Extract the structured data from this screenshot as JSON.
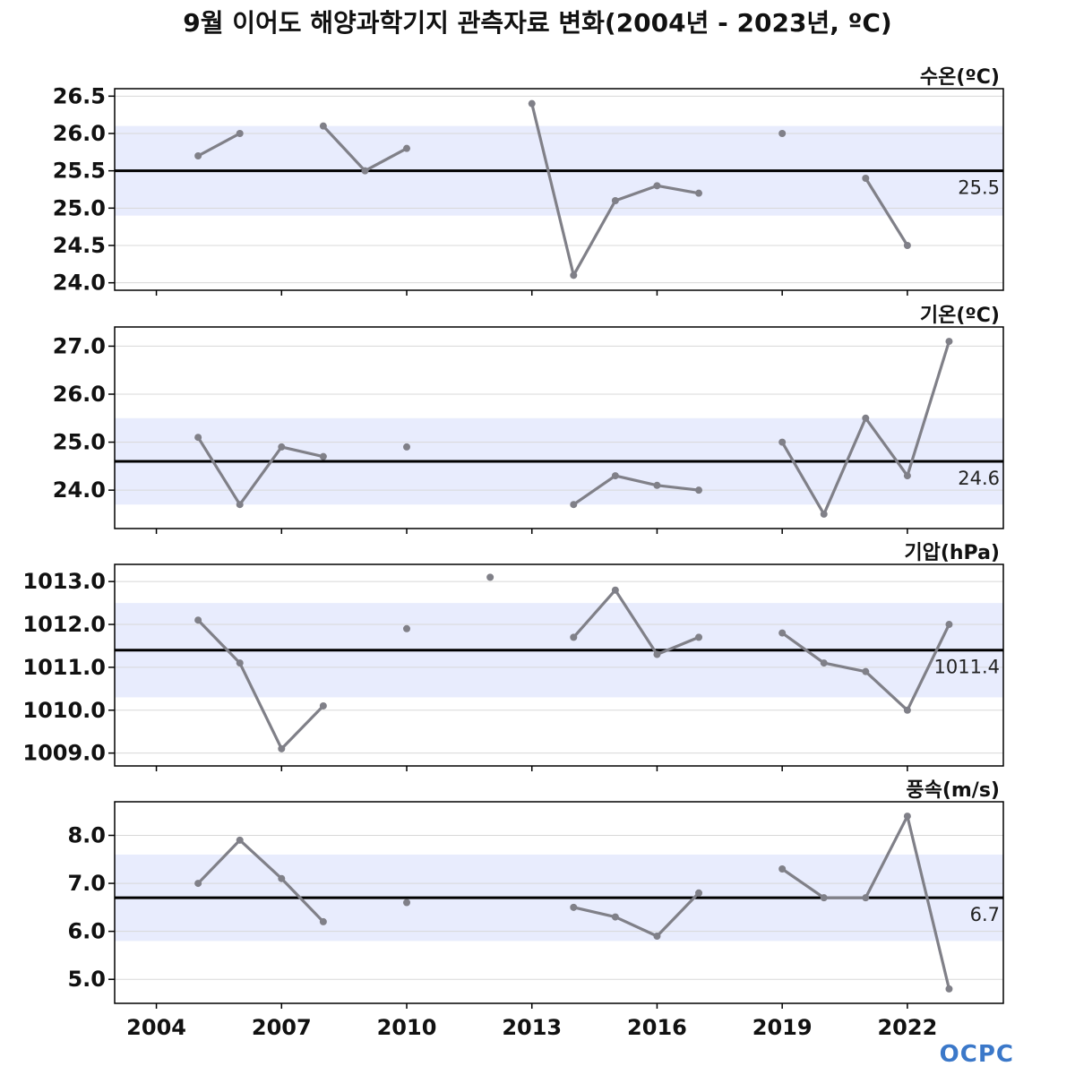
{
  "title": "9월 이어도 해양과학기지 관측자료 변화(2004년 - 2023년, ºC)",
  "logo": "OCPC",
  "chart_data": {
    "type": "line",
    "x_ticks": [
      2004,
      2007,
      2010,
      2013,
      2016,
      2019,
      2022
    ],
    "xlim": [
      2003.0,
      2024.3
    ],
    "colors": {
      "line": "#808088",
      "mean": "#000000",
      "band": "#e8ecfd",
      "grid": "#d8d8d8"
    },
    "panels": [
      {
        "name": "수온(ºC)",
        "ylim": [
          23.9,
          26.6
        ],
        "yticks": [
          24.0,
          24.5,
          25.0,
          25.5,
          26.0,
          26.5
        ],
        "tick_decimals": 1,
        "mean": 25.5,
        "mean_label": "25.5",
        "band": [
          24.9,
          26.1
        ],
        "x": [
          2005,
          2006,
          2007,
          2008,
          2009,
          2010,
          2011,
          2012,
          2013,
          2014,
          2015,
          2016,
          2017,
          2018,
          2019,
          2020,
          2021,
          2022,
          2023
        ],
        "y": [
          25.7,
          26.0,
          null,
          26.1,
          25.5,
          25.8,
          null,
          null,
          26.4,
          24.1,
          25.1,
          25.3,
          25.2,
          null,
          26.0,
          null,
          25.4,
          24.5,
          null
        ]
      },
      {
        "name": "기온(ºC)",
        "ylim": [
          23.2,
          27.4
        ],
        "yticks": [
          24.0,
          25.0,
          26.0,
          27.0
        ],
        "tick_decimals": 1,
        "mean": 24.6,
        "mean_label": "24.6",
        "band": [
          23.7,
          25.5
        ],
        "x": [
          2005,
          2006,
          2007,
          2008,
          2009,
          2010,
          2011,
          2012,
          2013,
          2014,
          2015,
          2016,
          2017,
          2018,
          2019,
          2020,
          2021,
          2022,
          2023
        ],
        "y": [
          25.1,
          23.7,
          24.9,
          24.7,
          null,
          24.9,
          null,
          null,
          null,
          23.7,
          24.3,
          24.1,
          24.0,
          null,
          25.0,
          23.5,
          25.5,
          24.3,
          27.1
        ]
      },
      {
        "name": "기압(hPa)",
        "ylim": [
          1008.7,
          1013.4
        ],
        "yticks": [
          1009.0,
          1010.0,
          1011.0,
          1012.0,
          1013.0
        ],
        "tick_decimals": 1,
        "mean": 1011.4,
        "mean_label": "1011.4",
        "band": [
          1010.3,
          1012.5
        ],
        "x": [
          2005,
          2006,
          2007,
          2008,
          2009,
          2010,
          2011,
          2012,
          2013,
          2014,
          2015,
          2016,
          2017,
          2018,
          2019,
          2020,
          2021,
          2022,
          2023
        ],
        "y": [
          1012.1,
          1011.1,
          1009.1,
          1010.1,
          null,
          1011.9,
          null,
          1013.1,
          null,
          1011.7,
          1012.8,
          1011.3,
          1011.7,
          null,
          1011.8,
          1011.1,
          1010.9,
          1010.0,
          1012.0
        ]
      },
      {
        "name": "풍속(m/s)",
        "ylim": [
          4.5,
          8.7
        ],
        "yticks": [
          5.0,
          6.0,
          7.0,
          8.0
        ],
        "tick_decimals": 1,
        "mean": 6.7,
        "mean_label": "6.7",
        "band": [
          5.8,
          7.6
        ],
        "x": [
          2005,
          2006,
          2007,
          2008,
          2009,
          2010,
          2011,
          2012,
          2013,
          2014,
          2015,
          2016,
          2017,
          2018,
          2019,
          2020,
          2021,
          2022,
          2023
        ],
        "y": [
          7.0,
          7.9,
          7.1,
          6.2,
          null,
          6.6,
          null,
          null,
          null,
          6.5,
          6.3,
          5.9,
          6.8,
          null,
          7.3,
          6.7,
          6.7,
          8.4,
          4.8
        ]
      }
    ]
  }
}
